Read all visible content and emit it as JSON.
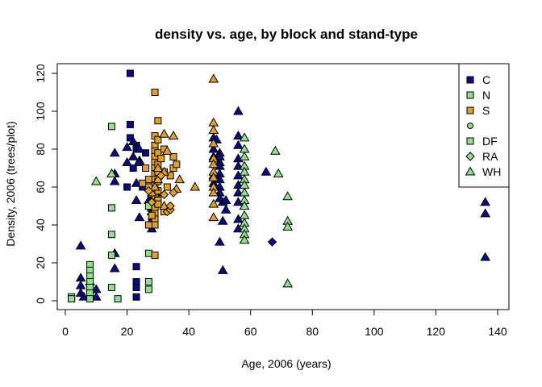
{
  "chart_data": {
    "type": "scatter",
    "title": "density vs. age, by block and stand-type",
    "xlabel": "Age, 2006 (years)",
    "ylabel": "Density, 2006 (trees/plot)",
    "xlim": [
      0,
      140
    ],
    "ylim": [
      0,
      120
    ],
    "xticks": [
      0,
      20,
      40,
      60,
      80,
      100,
      120,
      140
    ],
    "yticks": [
      0,
      20,
      40,
      60,
      80,
      100,
      120
    ],
    "grid": false,
    "legend_position": "top-right",
    "colors": {
      "navy": "#0B0B80",
      "green": "#90E090",
      "orange": "#E0A030"
    },
    "legend": [
      {
        "label": "C",
        "shape": "square",
        "color": "#0B0B80"
      },
      {
        "label": "N",
        "shape": "square",
        "color": "#90E090"
      },
      {
        "label": "S",
        "shape": "square",
        "color": "#E0A030"
      },
      {
        "label": "",
        "shape": "circle",
        "color": "#90E090"
      },
      {
        "label": "DF",
        "shape": "square",
        "color": "#90E090"
      },
      {
        "label": "RA",
        "shape": "diamond",
        "color": "#90E090"
      },
      {
        "label": "WH",
        "shape": "triangle",
        "color": "#90E090"
      }
    ],
    "series": [
      {
        "color": "#0B0B80",
        "shape": "square",
        "points": [
          [
            21,
            120
          ],
          [
            21,
            93
          ],
          [
            21,
            86
          ],
          [
            23,
            82
          ],
          [
            23,
            18
          ],
          [
            23,
            10
          ],
          [
            23,
            7
          ],
          [
            23,
            2
          ],
          [
            22,
            70
          ],
          [
            25,
            60
          ],
          [
            28,
            42
          ],
          [
            28,
            53
          ],
          [
            30,
            57
          ],
          [
            26,
            78
          ],
          [
            20,
            60
          ],
          [
            23,
            80
          ]
        ]
      },
      {
        "color": "#0B0B80",
        "shape": "triangle",
        "points": [
          [
            5,
            29
          ],
          [
            5,
            12
          ],
          [
            5,
            8
          ],
          [
            5,
            4
          ],
          [
            6,
            2
          ],
          [
            8,
            10
          ],
          [
            10,
            6
          ],
          [
            10,
            2
          ],
          [
            16,
            78
          ],
          [
            16,
            67
          ],
          [
            16,
            63
          ],
          [
            16,
            25
          ],
          [
            16,
            17
          ],
          [
            20,
            73
          ],
          [
            20,
            81
          ],
          [
            22,
            84
          ],
          [
            22,
            76
          ],
          [
            24,
            80
          ],
          [
            24,
            74
          ],
          [
            24,
            73
          ],
          [
            23,
            62
          ],
          [
            23,
            53
          ],
          [
            24,
            44
          ],
          [
            27,
            53
          ],
          [
            28,
            49
          ],
          [
            28,
            47
          ],
          [
            28,
            60
          ],
          [
            28,
            38
          ],
          [
            30,
            66
          ],
          [
            48,
            86
          ],
          [
            48,
            80
          ],
          [
            48,
            76
          ],
          [
            48,
            66
          ],
          [
            48,
            62
          ],
          [
            49,
            85
          ],
          [
            50,
            78
          ],
          [
            50,
            76
          ],
          [
            50,
            73
          ],
          [
            50,
            71
          ],
          [
            50,
            67
          ],
          [
            50,
            64
          ],
          [
            50,
            60
          ],
          [
            50,
            57
          ],
          [
            50,
            54
          ],
          [
            50,
            31
          ],
          [
            51,
            42
          ],
          [
            51,
            16
          ],
          [
            51,
            52
          ],
          [
            52,
            48
          ],
          [
            52,
            53
          ],
          [
            56,
            100
          ],
          [
            56,
            87
          ],
          [
            56,
            82
          ],
          [
            56,
            75
          ],
          [
            56,
            71
          ],
          [
            56,
            66
          ],
          [
            56,
            61
          ],
          [
            56,
            57
          ],
          [
            56,
            52
          ],
          [
            56,
            43
          ],
          [
            56,
            38
          ],
          [
            58,
            50
          ],
          [
            65,
            68
          ],
          [
            136,
            52
          ],
          [
            136,
            46
          ],
          [
            136,
            23
          ]
        ]
      },
      {
        "color": "#0B0B80",
        "shape": "diamond",
        "points": [
          [
            67,
            31
          ]
        ]
      },
      {
        "color": "#90E090",
        "shape": "square",
        "points": [
          [
            2,
            2
          ],
          [
            2,
            1
          ],
          [
            8,
            19
          ],
          [
            8,
            16
          ],
          [
            8,
            13
          ],
          [
            8,
            10
          ],
          [
            8,
            7
          ],
          [
            8,
            4
          ],
          [
            8,
            1
          ],
          [
            15,
            92
          ],
          [
            15,
            49
          ],
          [
            15,
            35
          ],
          [
            15,
            24
          ],
          [
            15,
            7
          ],
          [
            17,
            1
          ],
          [
            27,
            50
          ],
          [
            27,
            25
          ],
          [
            27,
            10
          ],
          [
            27,
            6
          ]
        ]
      },
      {
        "color": "#90E090",
        "shape": "triangle",
        "points": [
          [
            10,
            63
          ],
          [
            15,
            67
          ],
          [
            58,
            86
          ],
          [
            58,
            80
          ],
          [
            58,
            76
          ],
          [
            58,
            71
          ],
          [
            58,
            68
          ],
          [
            58,
            64
          ],
          [
            58,
            61
          ],
          [
            58,
            57
          ],
          [
            58,
            53
          ],
          [
            58,
            50
          ],
          [
            58,
            45
          ],
          [
            58,
            41
          ],
          [
            58,
            38
          ],
          [
            58,
            35
          ],
          [
            58,
            32
          ],
          [
            68,
            79
          ],
          [
            69,
            67
          ],
          [
            72,
            55
          ],
          [
            72,
            42
          ],
          [
            72,
            39
          ],
          [
            72,
            9
          ]
        ]
      },
      {
        "color": "#E0A030",
        "shape": "square",
        "points": [
          [
            29,
            110
          ],
          [
            29,
            87
          ],
          [
            30,
            95
          ],
          [
            29,
            82
          ],
          [
            29,
            79
          ],
          [
            29,
            76
          ],
          [
            29,
            73
          ],
          [
            29,
            70
          ],
          [
            29,
            67
          ],
          [
            29,
            64
          ],
          [
            29,
            61
          ],
          [
            29,
            58
          ],
          [
            29,
            55
          ],
          [
            29,
            52
          ],
          [
            29,
            49
          ],
          [
            29,
            46
          ],
          [
            29,
            43
          ],
          [
            29,
            40
          ],
          [
            29,
            24
          ],
          [
            30,
            85
          ],
          [
            30,
            78
          ],
          [
            30,
            72
          ],
          [
            30,
            68
          ],
          [
            30,
            63
          ],
          [
            30,
            58
          ],
          [
            30,
            53
          ],
          [
            27,
            64
          ],
          [
            27,
            60
          ],
          [
            27,
            40
          ],
          [
            26,
            70
          ],
          [
            25,
            62
          ],
          [
            31,
            75
          ],
          [
            32,
            80
          ],
          [
            33,
            60
          ],
          [
            34,
            66
          ],
          [
            35,
            70
          ],
          [
            36,
            72
          ],
          [
            32,
            47
          ],
          [
            28,
            45
          ],
          [
            30,
            51
          ],
          [
            32,
            68
          ],
          [
            35,
            76
          ]
        ]
      },
      {
        "color": "#E0A030",
        "shape": "triangle",
        "points": [
          [
            28,
            57
          ],
          [
            30,
            70
          ],
          [
            32,
            88
          ],
          [
            33,
            79
          ],
          [
            35,
            87
          ],
          [
            36,
            59
          ],
          [
            37,
            64
          ],
          [
            42,
            60
          ],
          [
            32,
            68
          ],
          [
            30,
            64
          ],
          [
            32,
            50
          ],
          [
            48,
            117
          ],
          [
            48,
            94
          ],
          [
            48,
            90
          ],
          [
            48,
            83
          ],
          [
            48,
            75
          ],
          [
            48,
            72
          ],
          [
            48,
            68
          ],
          [
            48,
            65
          ],
          [
            48,
            60
          ],
          [
            48,
            57
          ],
          [
            48,
            51
          ],
          [
            48,
            44
          ],
          [
            29,
            60
          ]
        ]
      },
      {
        "color": "#E0A030",
        "shape": "diamond",
        "points": [
          [
            27,
            58
          ],
          [
            31,
            66
          ],
          [
            33,
            47
          ],
          [
            34,
            48
          ],
          [
            34,
            50
          ],
          [
            32,
            56
          ],
          [
            35,
            57
          ],
          [
            28,
            52
          ]
        ]
      }
    ]
  }
}
